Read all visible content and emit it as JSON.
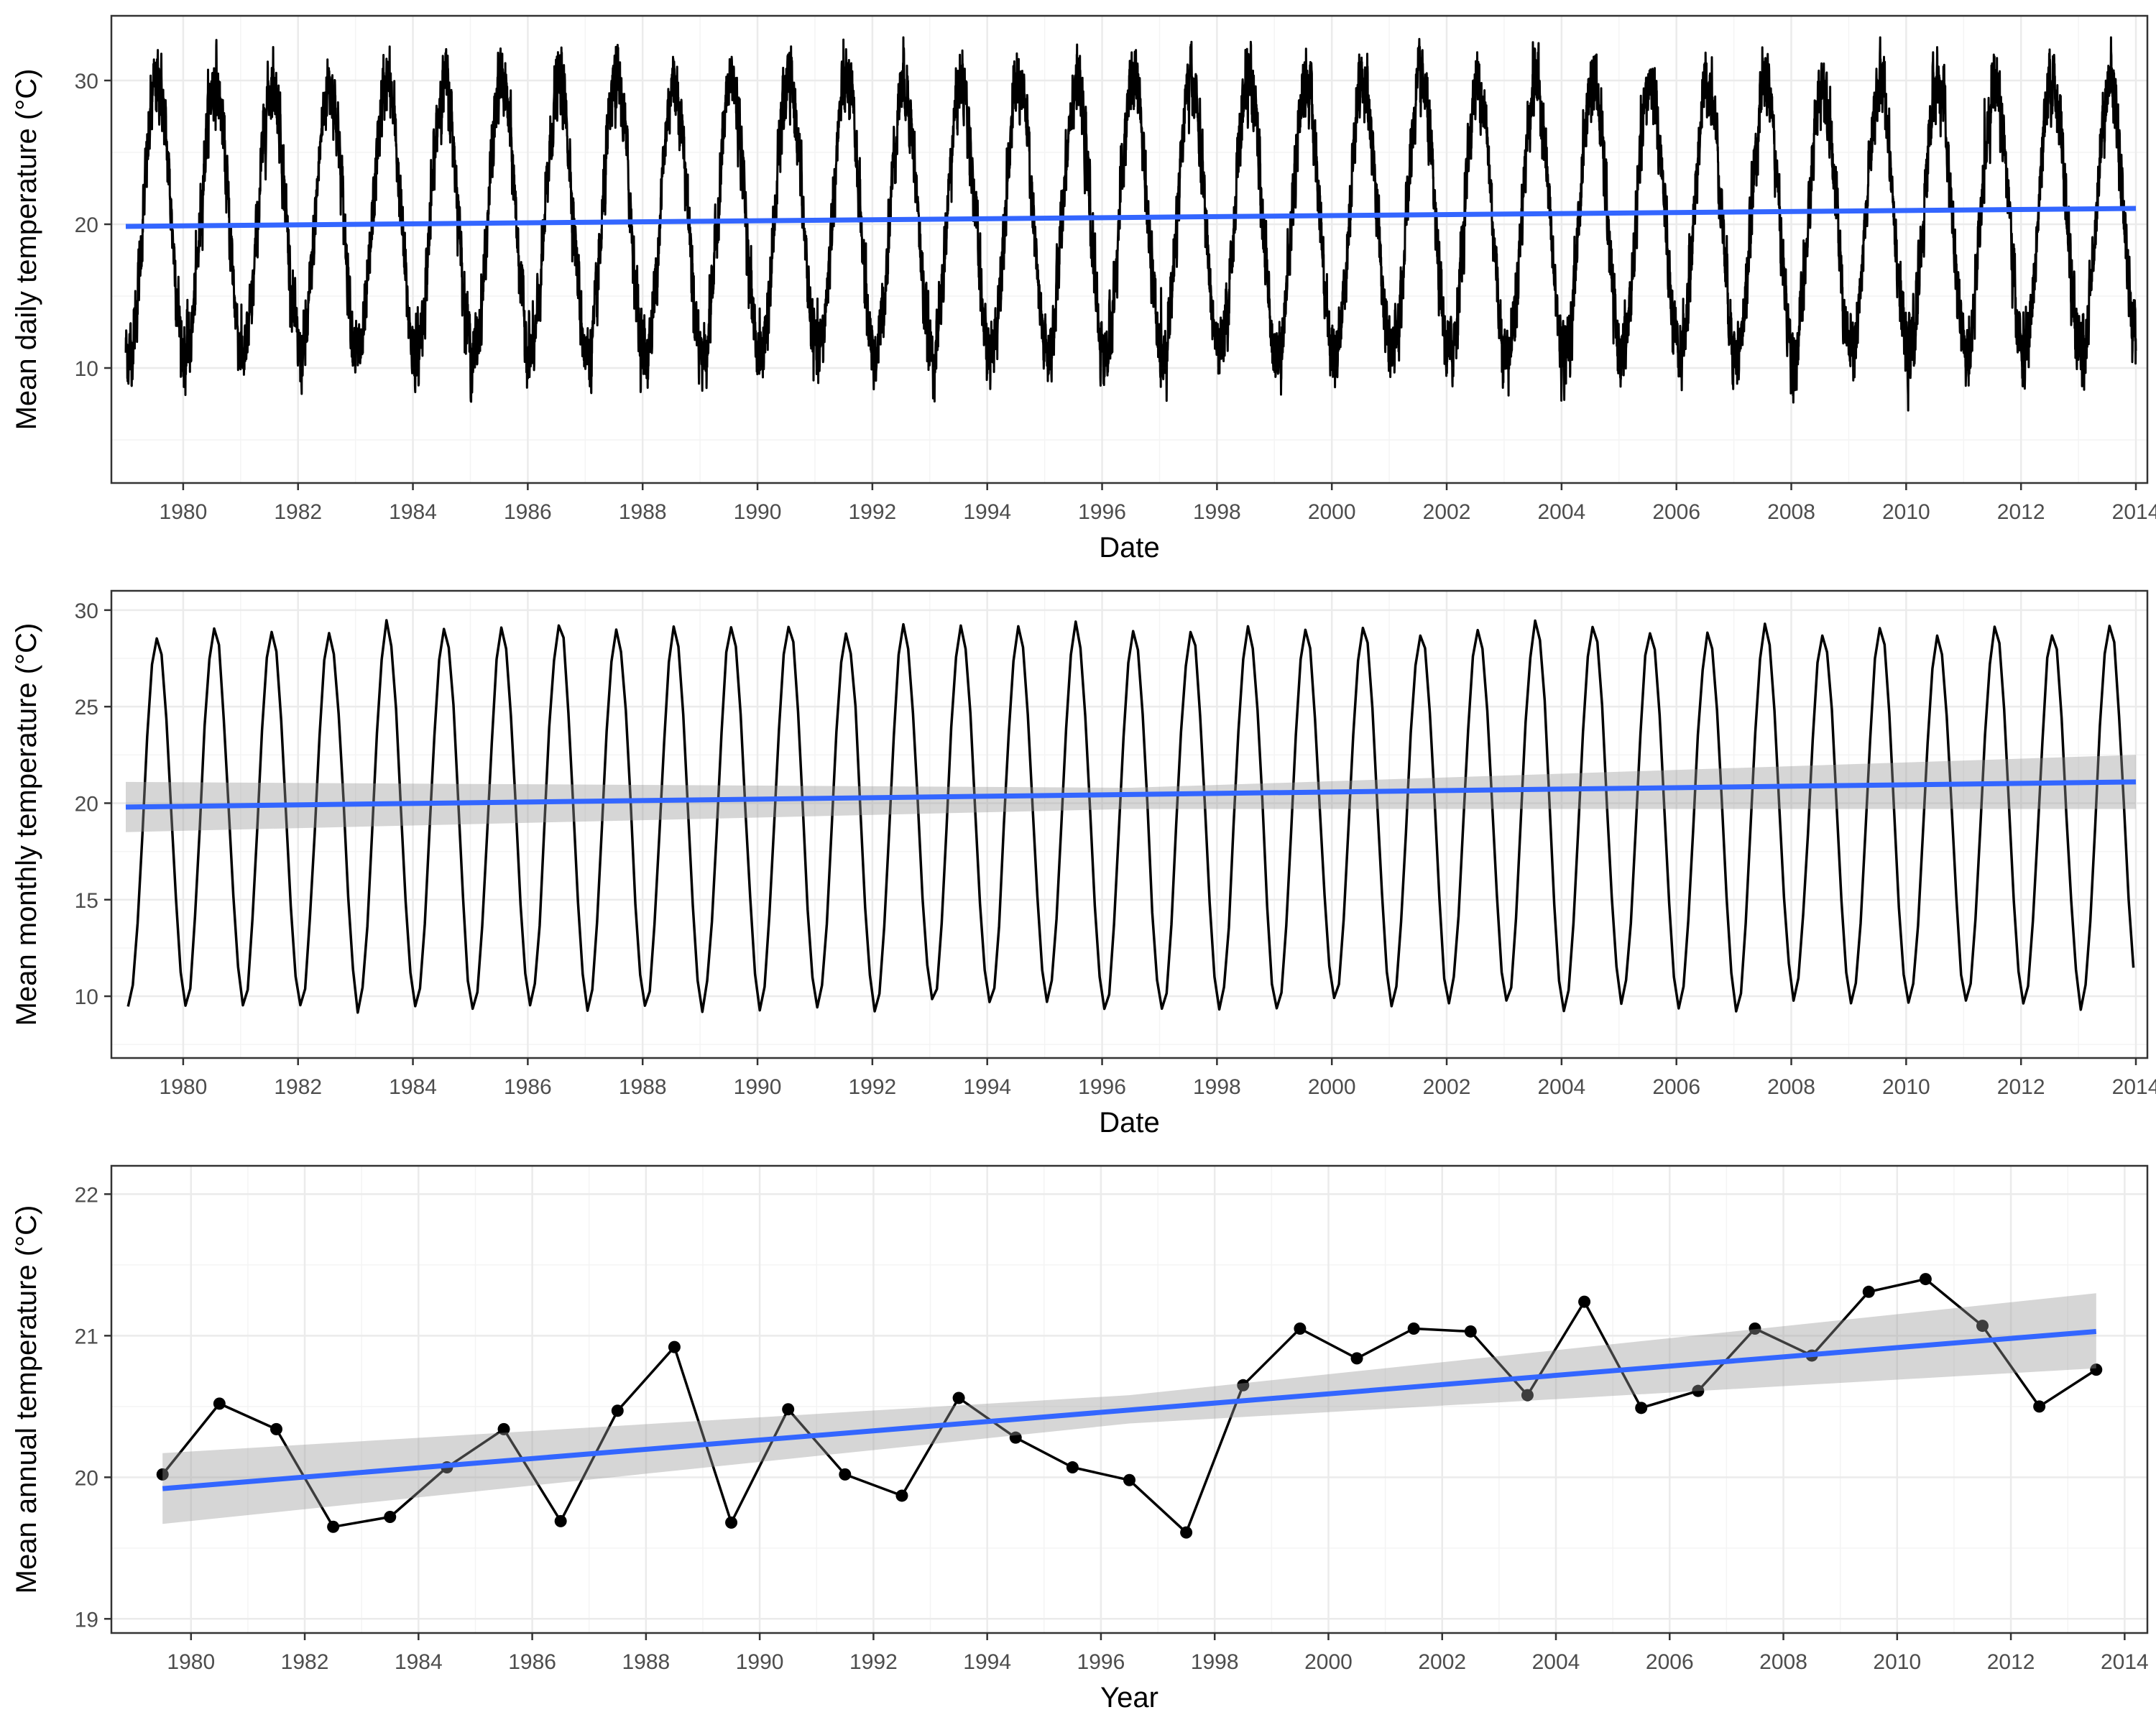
{
  "colors": {
    "series": "#000000",
    "trend": "#3366ff",
    "ribbon": "#cccccc",
    "grid_major": "#ebebeb",
    "grid_minor": "#f4f4f4",
    "panel_border": "#333333",
    "tick_text": "#4d4d4d"
  },
  "chart_data": [
    {
      "type": "line",
      "title": "",
      "xlabel": "Date",
      "ylabel": "Mean daily temperature (°C)",
      "xlim": [
        1978.75,
        2014.2
      ],
      "ylim": [
        2,
        34.5
      ],
      "x_ticks": [
        1980,
        1982,
        1984,
        1986,
        1988,
        1990,
        1992,
        1994,
        1996,
        1998,
        2000,
        2002,
        2004,
        2006,
        2008,
        2010,
        2012,
        2014
      ],
      "x_tick_labels": [
        "1980",
        "1982",
        "1984",
        "1986",
        "1988",
        "1990",
        "1992",
        "1994",
        "1996",
        "1998",
        "2000",
        "2002",
        "2004",
        "2006",
        "2008",
        "2010",
        "2012",
        "2014"
      ],
      "y_ticks": [
        10,
        20,
        30
      ],
      "y_tick_labels": [
        "10",
        "20",
        "30"
      ],
      "series": [
        {
          "name": "daily temperature",
          "generator": "seasonal",
          "x_start": 1979.0,
          "x_end": 2014.0,
          "points_per_year": 365,
          "mean": 20.4,
          "amplitude": 9.5,
          "peak_fraction_of_year": 0.55,
          "noise": 2.2,
          "clip": [
            3.0,
            33.0
          ]
        }
      ],
      "trend": {
        "x": [
          1979.0,
          2014.0
        ],
        "y": [
          19.85,
          21.1
        ]
      },
      "ribbon": null
    },
    {
      "type": "line",
      "title": "",
      "xlabel": "Date",
      "ylabel": "Mean monthly temperature (°C)",
      "xlim": [
        1978.75,
        2014.2
      ],
      "ylim": [
        6.8,
        31.0
      ],
      "x_ticks": [
        1980,
        1982,
        1984,
        1986,
        1988,
        1990,
        1992,
        1994,
        1996,
        1998,
        2000,
        2002,
        2004,
        2006,
        2008,
        2010,
        2012,
        2014
      ],
      "x_tick_labels": [
        "1980",
        "1982",
        "1984",
        "1986",
        "1988",
        "1990",
        "1992",
        "1994",
        "1996",
        "1998",
        "2000",
        "2002",
        "2004",
        "2006",
        "2008",
        "2010",
        "2012",
        "2014"
      ],
      "y_ticks": [
        10,
        15,
        20,
        25,
        30
      ],
      "y_tick_labels": [
        "10",
        "15",
        "20",
        "25",
        "30"
      ],
      "series": [
        {
          "name": "monthly temperature",
          "generator": "seasonal",
          "x_start": 1979.04,
          "x_end": 2013.96,
          "points_per_year": 12,
          "mean": 19.3,
          "amplitude": 9.8,
          "peak_fraction_of_year": 0.55,
          "noise": 0.45,
          "clip": [
            7.4,
            30.0
          ]
        }
      ],
      "trend": {
        "x": [
          1979.0,
          2014.0
        ],
        "y": [
          19.8,
          21.1
        ]
      },
      "ribbon": {
        "x": [
          1979.0,
          1996.5,
          2014.0
        ],
        "lower": [
          18.5,
          19.7,
          19.7
        ],
        "upper": [
          21.1,
          20.8,
          22.5
        ]
      }
    },
    {
      "type": "line",
      "title": "",
      "xlabel": "Year",
      "ylabel": "Mean annual temperature (°C)",
      "xlim": [
        1978.6,
        2014.4
      ],
      "ylim": [
        18.9,
        22.2
      ],
      "x_ticks": [
        1980,
        1982,
        1984,
        1986,
        1988,
        1990,
        1992,
        1994,
        1996,
        1998,
        2000,
        2002,
        2004,
        2006,
        2008,
        2010,
        2012,
        2014
      ],
      "x_tick_labels": [
        "1980",
        "1982",
        "1984",
        "1986",
        "1988",
        "1990",
        "1992",
        "1994",
        "1996",
        "1998",
        "2000",
        "2002",
        "2004",
        "2006",
        "2008",
        "2010",
        "2012",
        "2014"
      ],
      "y_ticks": [
        19,
        20,
        21,
        22
      ],
      "y_tick_labels": [
        "19",
        "20",
        "21",
        "22"
      ],
      "series": [
        {
          "name": "annual temperature",
          "x": [
            1979.5,
            1980.5,
            1981.5,
            1982.5,
            1983.5,
            1984.5,
            1985.5,
            1986.5,
            1987.5,
            1988.5,
            1989.5,
            1990.5,
            1991.5,
            1992.5,
            1993.5,
            1994.5,
            1995.5,
            1996.5,
            1997.5,
            1998.5,
            1999.5,
            2000.5,
            2001.5,
            2002.5,
            2003.5,
            2004.5,
            2005.5,
            2006.5,
            2007.5,
            2008.5,
            2009.5,
            2010.5,
            2011.5,
            2012.5,
            2013.5
          ],
          "y": [
            20.02,
            20.52,
            20.34,
            19.65,
            19.72,
            20.07,
            20.34,
            19.69,
            20.47,
            20.92,
            19.68,
            20.48,
            20.02,
            19.87,
            20.56,
            20.28,
            20.07,
            19.98,
            19.61,
            20.65,
            21.05,
            20.84,
            21.05,
            21.03,
            20.58,
            21.24,
            20.49,
            20.61,
            21.05,
            20.86,
            21.31,
            21.4,
            21.07,
            20.5,
            20.76
          ],
          "markers": true
        }
      ],
      "trend": {
        "x": [
          1979.5,
          2013.5
        ],
        "y": [
          19.92,
          21.03
        ]
      },
      "ribbon": {
        "x": [
          1979.5,
          1996.5,
          2013.5
        ],
        "lower": [
          19.67,
          20.38,
          20.77
        ],
        "upper": [
          20.17,
          20.58,
          21.3
        ]
      }
    }
  ]
}
